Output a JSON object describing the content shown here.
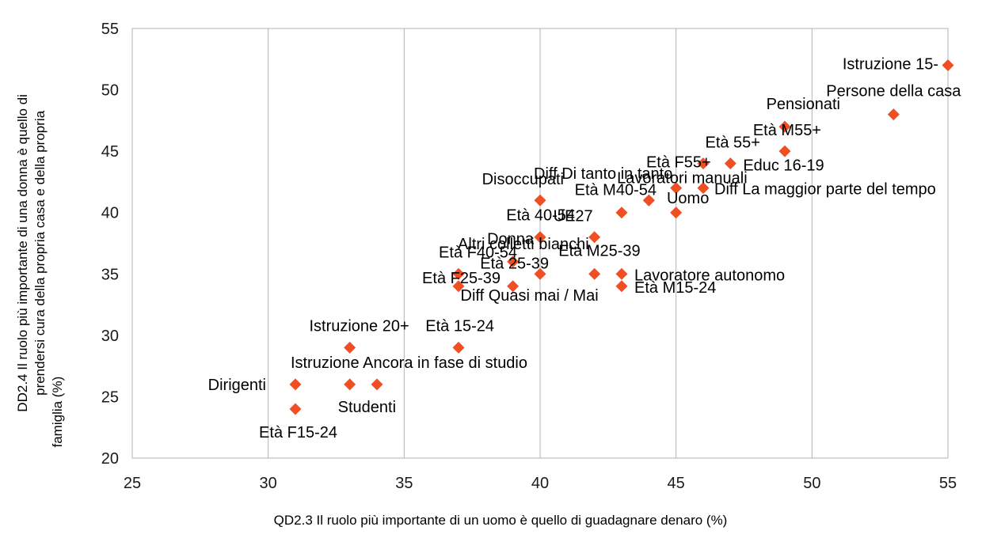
{
  "chart_data": {
    "type": "scatter",
    "title": "",
    "xlabel": "QD2.3 Il ruolo più importante di un uomo è quello di guadagnare denaro (%)",
    "ylabel_lines": [
      "DD2.4 Il ruolo più importante di una donna è quello di",
      "prendersi cura della propria casa e della propria",
      "famiglia (%)"
    ],
    "xlim": [
      25,
      55
    ],
    "ylim": [
      20,
      55
    ],
    "xticks": [
      25,
      30,
      35,
      40,
      45,
      50,
      55
    ],
    "yticks": [
      20,
      25,
      30,
      35,
      40,
      45,
      50,
      55
    ],
    "grid": "vertical",
    "marker": "diamond",
    "marker_color": "#f04e23",
    "points": [
      {
        "label": "Istruzione 15-",
        "x": 55,
        "y": 52
      },
      {
        "label": "Persone della casa",
        "x": 53,
        "y": 48
      },
      {
        "label": "Pensionati",
        "x": 49,
        "y": 47
      },
      {
        "label": "Età M55+",
        "x": 49,
        "y": 45
      },
      {
        "label": "Età 55+",
        "x": 46,
        "y": 44
      },
      {
        "label": "Educ 16-19",
        "x": 47,
        "y": 44
      },
      {
        "label": "Età F55+",
        "x": 45,
        "y": 42
      },
      {
        "label": "Diff Di tanto in tanto",
        "x": 44,
        "y": 41
      },
      {
        "label": "Diff La maggior parte del tempo",
        "x": 46,
        "y": 42
      },
      {
        "label": "Lavoratori manuali",
        "x": 45,
        "y": 40
      },
      {
        "label": "Uomo",
        "x": 44,
        "y": 41
      },
      {
        "label": "Età M40-54",
        "x": 43,
        "y": 40
      },
      {
        "label": "Disoccupati",
        "x": 40,
        "y": 41
      },
      {
        "label": "Età 40-54",
        "x": 40,
        "y": 38
      },
      {
        "label": "UE27",
        "x": 42,
        "y": 38
      },
      {
        "label": "Donna",
        "x": 40,
        "y": 38
      },
      {
        "label": "Età F40-54",
        "x": 37,
        "y": 35
      },
      {
        "label": "Altri colletti bianchi",
        "x": 39,
        "y": 36
      },
      {
        "label": "Età M25-39",
        "x": 42,
        "y": 35
      },
      {
        "label": "Età 25-39",
        "x": 40,
        "y": 35
      },
      {
        "label": "Età F25-39",
        "x": 37,
        "y": 34
      },
      {
        "label": "Diff Quasi mai / Mai",
        "x": 39,
        "y": 34
      },
      {
        "label": "Lavoratore autonomo",
        "x": 43,
        "y": 35
      },
      {
        "label": "Età M15-24",
        "x": 43,
        "y": 34
      },
      {
        "label": "Istruzione 20+",
        "x": 33,
        "y": 29
      },
      {
        "label": "Età 15-24",
        "x": 37,
        "y": 29
      },
      {
        "label": "Istruzione Ancora in fase di studio",
        "x": 34,
        "y": 26
      },
      {
        "label": "Dirigenti",
        "x": 31,
        "y": 26
      },
      {
        "label": "Studenti",
        "x": 33,
        "y": 26
      },
      {
        "label": "Età F15-24",
        "x": 31,
        "y": 24
      }
    ]
  }
}
